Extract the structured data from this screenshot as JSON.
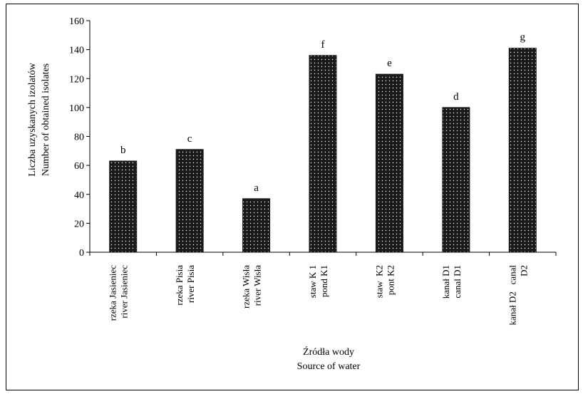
{
  "chart_data": {
    "type": "bar",
    "categories": [
      [
        "rzeka Jasieniec",
        "river Jasieniec"
      ],
      [
        "rzeka Pisia",
        "river Pisia"
      ],
      [
        "rzeka Wisła",
        "river Wisła"
      ],
      [
        "staw K 1",
        "pond K1"
      ],
      [
        "staw  K2",
        "pont K2"
      ],
      [
        "kanał D1",
        "canal D1"
      ],
      [
        "kanał D2   canal",
        "D2"
      ]
    ],
    "values": [
      63,
      71,
      37,
      136,
      123,
      100,
      141
    ],
    "data_labels": [
      "b",
      "c",
      "a",
      "f",
      "e",
      "d",
      "g"
    ],
    "ylim": [
      0,
      160
    ],
    "yticks": [
      0,
      20,
      40,
      60,
      80,
      100,
      120,
      140,
      160
    ],
    "ylabel": [
      "Liczba uzyskanych izolatów",
      "Number of obtained isolates"
    ],
    "xlabel": [
      "Źródła wody",
      "Source of water"
    ],
    "colors": {
      "bar": "#1a1a1a",
      "dots": "#ffffff"
    },
    "pattern": "dotted",
    "grid": false
  }
}
